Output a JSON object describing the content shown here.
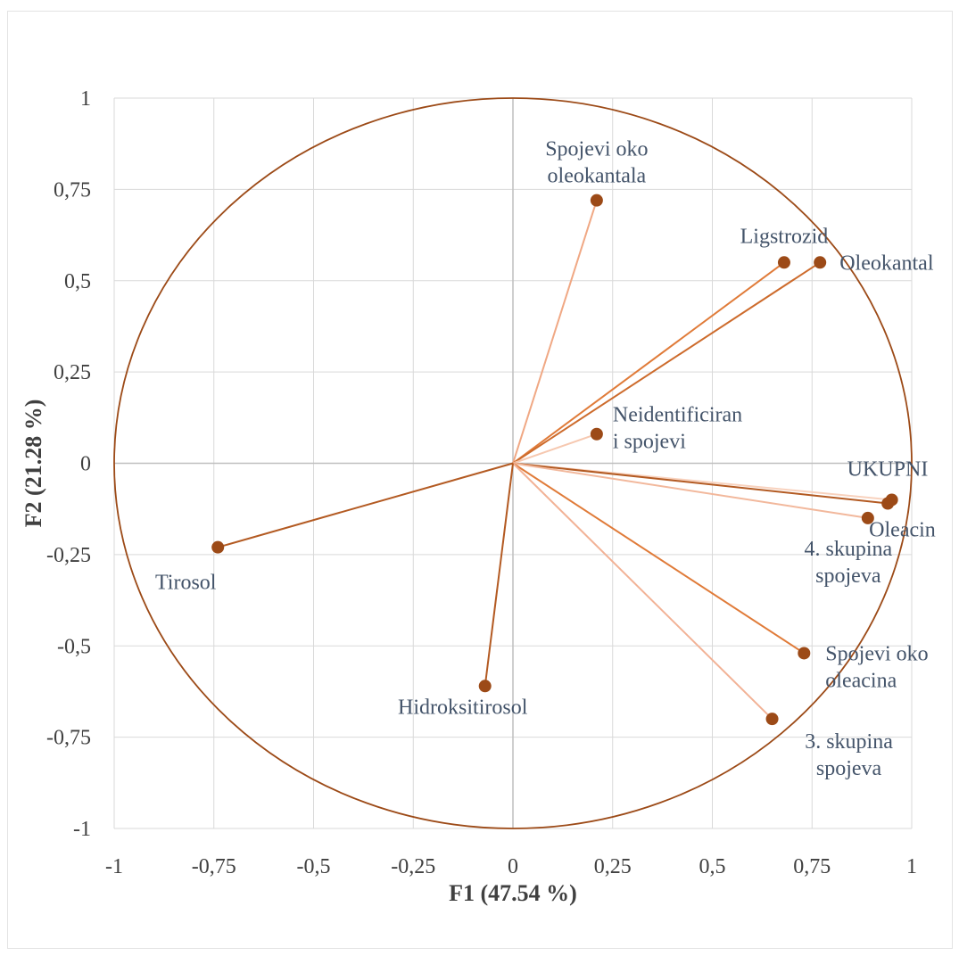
{
  "chart_data": {
    "type": "scatter",
    "title": "",
    "xlabel": "F1 (47.54 %)",
    "ylabel": "F2 (21.28 %)",
    "xlim": [
      -1,
      1
    ],
    "ylim": [
      -1,
      1
    ],
    "x_ticks": [
      "-1",
      "-0,75",
      "-0,5",
      "-0,25",
      "0",
      "0,25",
      "0,5",
      "0,75",
      "1"
    ],
    "y_ticks": [
      "-1",
      "-0,75",
      "-0,5",
      "-0,25",
      "0",
      "0,25",
      "0,5",
      "0,75",
      "1"
    ],
    "grid": true,
    "unit_circle": true,
    "legend": "none",
    "colors": {
      "circle": "#9c4a17",
      "point": "#9c4a17",
      "grid": "#d9d9d9",
      "zero_axis": "#bfbfbf"
    },
    "points": [
      {
        "label": [
          "Spojevi oko",
          "oleokantala"
        ],
        "x": 0.21,
        "y": 0.72,
        "line_color": "#f0a884"
      },
      {
        "label": [
          "Ligstrozid"
        ],
        "x": 0.68,
        "y": 0.55,
        "line_color": "#e07b39"
      },
      {
        "label": [
          "Oleokantal"
        ],
        "x": 0.77,
        "y": 0.55,
        "line_color": "#cd6b2c"
      },
      {
        "label": [
          "Neidentificiran",
          "i spojevi"
        ],
        "x": 0.21,
        "y": 0.08,
        "line_color": "#f6c8b0"
      },
      {
        "label": [
          "UKUPNI"
        ],
        "x": 0.95,
        "y": -0.1,
        "line_color": "#f8d2be"
      },
      {
        "label": [
          "Oleacin"
        ],
        "x": 0.94,
        "y": -0.11,
        "line_color": "#b35a22"
      },
      {
        "label": [
          "4. skupina",
          "spojeva"
        ],
        "x": 0.89,
        "y": -0.15,
        "line_color": "#f2b89c"
      },
      {
        "label": [
          "Spojevi oko",
          "oleacina"
        ],
        "x": 0.73,
        "y": -0.52,
        "line_color": "#e07b39"
      },
      {
        "label": [
          "3. skupina",
          "spojeva"
        ],
        "x": 0.65,
        "y": -0.7,
        "line_color": "#f2b296"
      },
      {
        "label": [
          "Hidroksitirosol"
        ],
        "x": -0.07,
        "y": -0.61,
        "line_color": "#b35a22"
      },
      {
        "label": [
          "Tirosol"
        ],
        "x": -0.74,
        "y": -0.23,
        "line_color": "#b35a22"
      }
    ]
  }
}
